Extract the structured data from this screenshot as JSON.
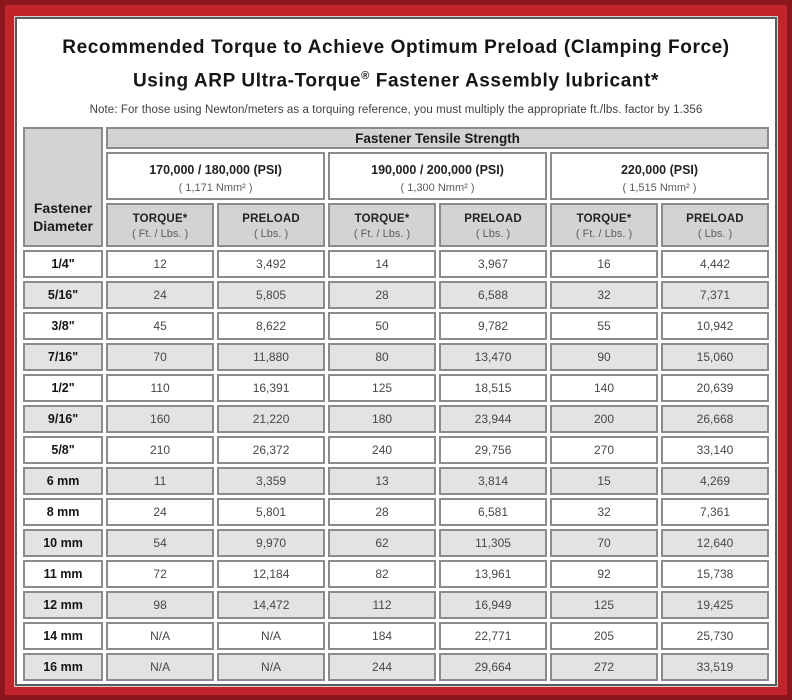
{
  "page": {
    "title_line1": "Recommended Torque to Achieve Optimum Preload (Clamping Force)",
    "title_line2_pre": "Using ARP Ultra-Torque",
    "title_line2_sup": "®",
    "title_line2_post": " Fastener Assembly lubricant*",
    "note": "Note: For those using Newton/meters as a torquing reference, you must multiply the appropriate ft./lbs. factor by 1.356"
  },
  "table": {
    "corner_header": "Fastener Diameter",
    "tensile_header": "Fastener Tensile Strength",
    "strength_groups": [
      {
        "psi": "170,000 / 180,000 (PSI)",
        "nmm": "( 1,171 Nmm² )"
      },
      {
        "psi": "190,000 / 200,000 (PSI)",
        "nmm": "( 1,300 Nmm² )"
      },
      {
        "psi": "220,000 (PSI)",
        "nmm": "( 1,515 Nmm² )"
      }
    ],
    "col_headers": [
      {
        "main": "TORQUE*",
        "sub": "( Ft. / Lbs. )"
      },
      {
        "main": "PRELOAD",
        "sub": "( Lbs. )"
      },
      {
        "main": "TORQUE*",
        "sub": "( Ft. / Lbs. )"
      },
      {
        "main": "PRELOAD",
        "sub": "( Lbs. )"
      },
      {
        "main": "TORQUE*",
        "sub": "( Ft. / Lbs. )"
      },
      {
        "main": "PRELOAD",
        "sub": "( Lbs. )"
      }
    ],
    "rows": [
      {
        "diameter": "1/4\"",
        "values": [
          "12",
          "3,492",
          "14",
          "3,967",
          "16",
          "4,442"
        ]
      },
      {
        "diameter": "5/16\"",
        "values": [
          "24",
          "5,805",
          "28",
          "6,588",
          "32",
          "7,371"
        ]
      },
      {
        "diameter": "3/8\"",
        "values": [
          "45",
          "8,622",
          "50",
          "9,782",
          "55",
          "10,942"
        ]
      },
      {
        "diameter": "7/16\"",
        "values": [
          "70",
          "11,880",
          "80",
          "13,470",
          "90",
          "15,060"
        ]
      },
      {
        "diameter": "1/2\"",
        "values": [
          "110",
          "16,391",
          "125",
          "18,515",
          "140",
          "20,639"
        ]
      },
      {
        "diameter": "9/16\"",
        "values": [
          "160",
          "21,220",
          "180",
          "23,944",
          "200",
          "26,668"
        ]
      },
      {
        "diameter": "5/8\"",
        "values": [
          "210",
          "26,372",
          "240",
          "29,756",
          "270",
          "33,140"
        ]
      },
      {
        "diameter": "6 mm",
        "values": [
          "11",
          "3,359",
          "13",
          "3,814",
          "15",
          "4,269"
        ]
      },
      {
        "diameter": "8 mm",
        "values": [
          "24",
          "5,801",
          "28",
          "6,581",
          "32",
          "7,361"
        ]
      },
      {
        "diameter": "10 mm",
        "values": [
          "54",
          "9,970",
          "62",
          "11,305",
          "70",
          "12,640"
        ]
      },
      {
        "diameter": "11 mm",
        "values": [
          "72",
          "12,184",
          "82",
          "13,961",
          "92",
          "15,738"
        ]
      },
      {
        "diameter": "12 mm",
        "values": [
          "98",
          "14,472",
          "112",
          "16,949",
          "125",
          "19,425"
        ]
      },
      {
        "diameter": "14 mm",
        "values": [
          "N/A",
          "N/A",
          "184",
          "22,771",
          "205",
          "25,730"
        ]
      },
      {
        "diameter": "16 mm",
        "values": [
          "N/A",
          "N/A",
          "244",
          "29,664",
          "272",
          "33,519"
        ]
      }
    ]
  },
  "colors": {
    "frame_red": "#c2242b",
    "frame_dark_red": "#8c161c",
    "sheet_border": "#5a5b5d",
    "cell_border": "#8b8b8b",
    "header_gray": "#d3d3d3",
    "row_shade_gray": "#e3e3e3"
  }
}
